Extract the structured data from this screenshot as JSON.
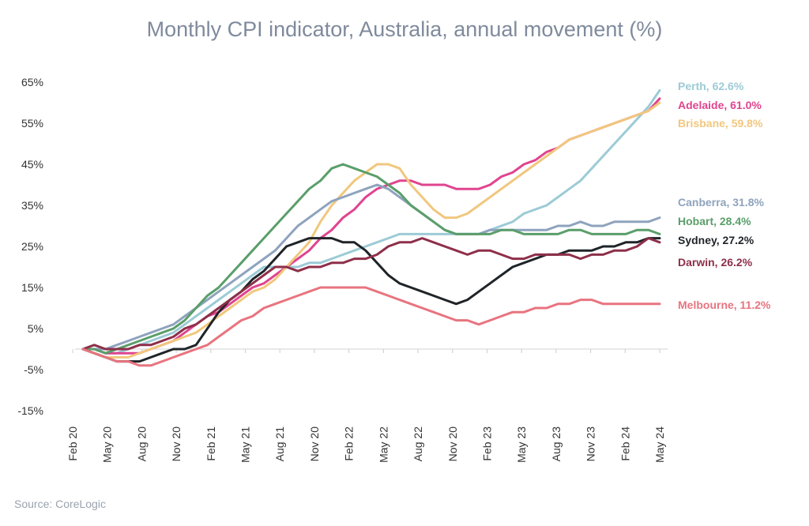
{
  "chart_data": {
    "type": "line",
    "title": "Monthly CPI indicator, Australia, annual movement (%)",
    "source": "Source: CoreLogic",
    "ylim": [
      -15,
      65
    ],
    "y_ticks": [
      "65%",
      "55%",
      "45%",
      "35%",
      "25%",
      "15%",
      "5%",
      "-5%",
      "-15%"
    ],
    "y_tick_values": [
      65,
      55,
      45,
      35,
      25,
      15,
      5,
      -5,
      -15
    ],
    "x_tick_labels": [
      "Feb 20",
      "May 20",
      "Aug 20",
      "Nov 20",
      "Feb 21",
      "May 21",
      "Aug 21",
      "Nov 20",
      "Feb 22",
      "May 22",
      "Aug 22",
      "Nov 20",
      "Feb 23",
      "May 23",
      "Aug 23",
      "Nov 23",
      "Feb 24",
      "May 24"
    ],
    "x_points": 52,
    "grid": false,
    "series": [
      {
        "name": "Perth",
        "end_label": "Perth, 62.6%",
        "color": "#9ccbd6",
        "values": [
          0,
          0,
          -1,
          -1,
          0,
          1,
          2,
          3,
          4,
          6,
          8,
          10,
          12,
          14,
          16,
          18,
          20,
          20,
          20,
          20,
          21,
          21,
          22,
          23,
          24,
          25,
          26,
          27,
          28,
          28,
          28,
          28,
          28,
          28,
          28,
          28,
          29,
          30,
          31,
          33,
          34,
          35,
          37,
          39,
          41,
          44,
          47,
          50,
          53,
          56,
          59,
          63
        ]
      },
      {
        "name": "Adelaide",
        "end_label": "Adelaide, 61.0%",
        "color": "#e0448f",
        "values": [
          0,
          0,
          -1,
          -1,
          -1,
          -1,
          0,
          1,
          2,
          4,
          6,
          8,
          9,
          11,
          13,
          15,
          16,
          18,
          20,
          22,
          24,
          27,
          29,
          32,
          34,
          37,
          39,
          40,
          41,
          41,
          40,
          40,
          40,
          39,
          39,
          39,
          40,
          42,
          43,
          45,
          46,
          48,
          49,
          51,
          52,
          53,
          54,
          55,
          56,
          57,
          58,
          61
        ]
      },
      {
        "name": "Brisbane",
        "end_label": "Brisbane, 59.8%",
        "color": "#f1c77e",
        "values": [
          0,
          -1,
          -2,
          -2,
          -2,
          -1,
          0,
          1,
          2,
          3,
          4,
          6,
          8,
          10,
          12,
          14,
          15,
          17,
          20,
          23,
          26,
          31,
          35,
          38,
          41,
          43,
          45,
          45,
          44,
          40,
          37,
          34,
          32,
          32,
          33,
          35,
          37,
          39,
          41,
          43,
          45,
          47,
          49,
          51,
          52,
          53,
          54,
          55,
          56,
          57,
          58,
          60
        ]
      },
      {
        "name": "Canberra",
        "end_label": "Canberra, 31.8%",
        "color": "#8ea3bd",
        "values": [
          0,
          0,
          0,
          1,
          2,
          3,
          4,
          5,
          6,
          8,
          10,
          12,
          14,
          16,
          18,
          20,
          22,
          24,
          27,
          30,
          32,
          34,
          36,
          37,
          38,
          39,
          40,
          39,
          37,
          35,
          33,
          31,
          29,
          28,
          28,
          28,
          29,
          29,
          29,
          29,
          29,
          29,
          30,
          30,
          31,
          30,
          30,
          31,
          31,
          31,
          31,
          32
        ]
      },
      {
        "name": "Hobart",
        "end_label": "Hobart, 28.4%",
        "color": "#5a9e6a",
        "values": [
          0,
          0,
          -1,
          0,
          1,
          2,
          3,
          4,
          5,
          7,
          10,
          13,
          15,
          18,
          21,
          24,
          27,
          30,
          33,
          36,
          39,
          41,
          44,
          45,
          44,
          43,
          42,
          40,
          38,
          35,
          33,
          31,
          29,
          28,
          28,
          28,
          28,
          29,
          29,
          28,
          28,
          28,
          28,
          29,
          29,
          28,
          28,
          28,
          28,
          29,
          29,
          28
        ]
      },
      {
        "name": "Sydney",
        "end_label": "Sydney, 27.2%",
        "color": "#1f2428",
        "values": [
          0,
          -1,
          -2,
          -3,
          -3,
          -3,
          -2,
          -1,
          0,
          0,
          1,
          5,
          9,
          12,
          14,
          17,
          19,
          22,
          25,
          26,
          27,
          27,
          27,
          26,
          26,
          24,
          21,
          18,
          16,
          15,
          14,
          13,
          12,
          11,
          12,
          14,
          16,
          18,
          20,
          21,
          22,
          23,
          23,
          24,
          24,
          24,
          25,
          25,
          26,
          26,
          27,
          27
        ]
      },
      {
        "name": "Darwin",
        "end_label": "Darwin, 26.2%",
        "color": "#8e2f4a",
        "values": [
          0,
          1,
          0,
          0,
          0,
          1,
          1,
          2,
          3,
          5,
          6,
          8,
          10,
          12,
          14,
          16,
          18,
          20,
          20,
          19,
          20,
          20,
          21,
          21,
          22,
          22,
          23,
          25,
          26,
          26,
          27,
          26,
          25,
          24,
          23,
          24,
          24,
          23,
          22,
          22,
          23,
          23,
          23,
          23,
          22,
          23,
          23,
          24,
          24,
          25,
          27,
          26
        ]
      },
      {
        "name": "Melbourne",
        "end_label": "Melbourne, 11.2%",
        "color": "#e8747f",
        "values": [
          0,
          -1,
          -2,
          -3,
          -3,
          -4,
          -4,
          -3,
          -2,
          -1,
          0,
          1,
          3,
          5,
          7,
          8,
          10,
          11,
          12,
          13,
          14,
          15,
          15,
          15,
          15,
          15,
          14,
          13,
          12,
          11,
          10,
          9,
          8,
          7,
          7,
          6,
          7,
          8,
          9,
          9,
          10,
          10,
          11,
          11,
          12,
          12,
          11,
          11,
          11,
          11,
          11,
          11
        ]
      }
    ]
  }
}
